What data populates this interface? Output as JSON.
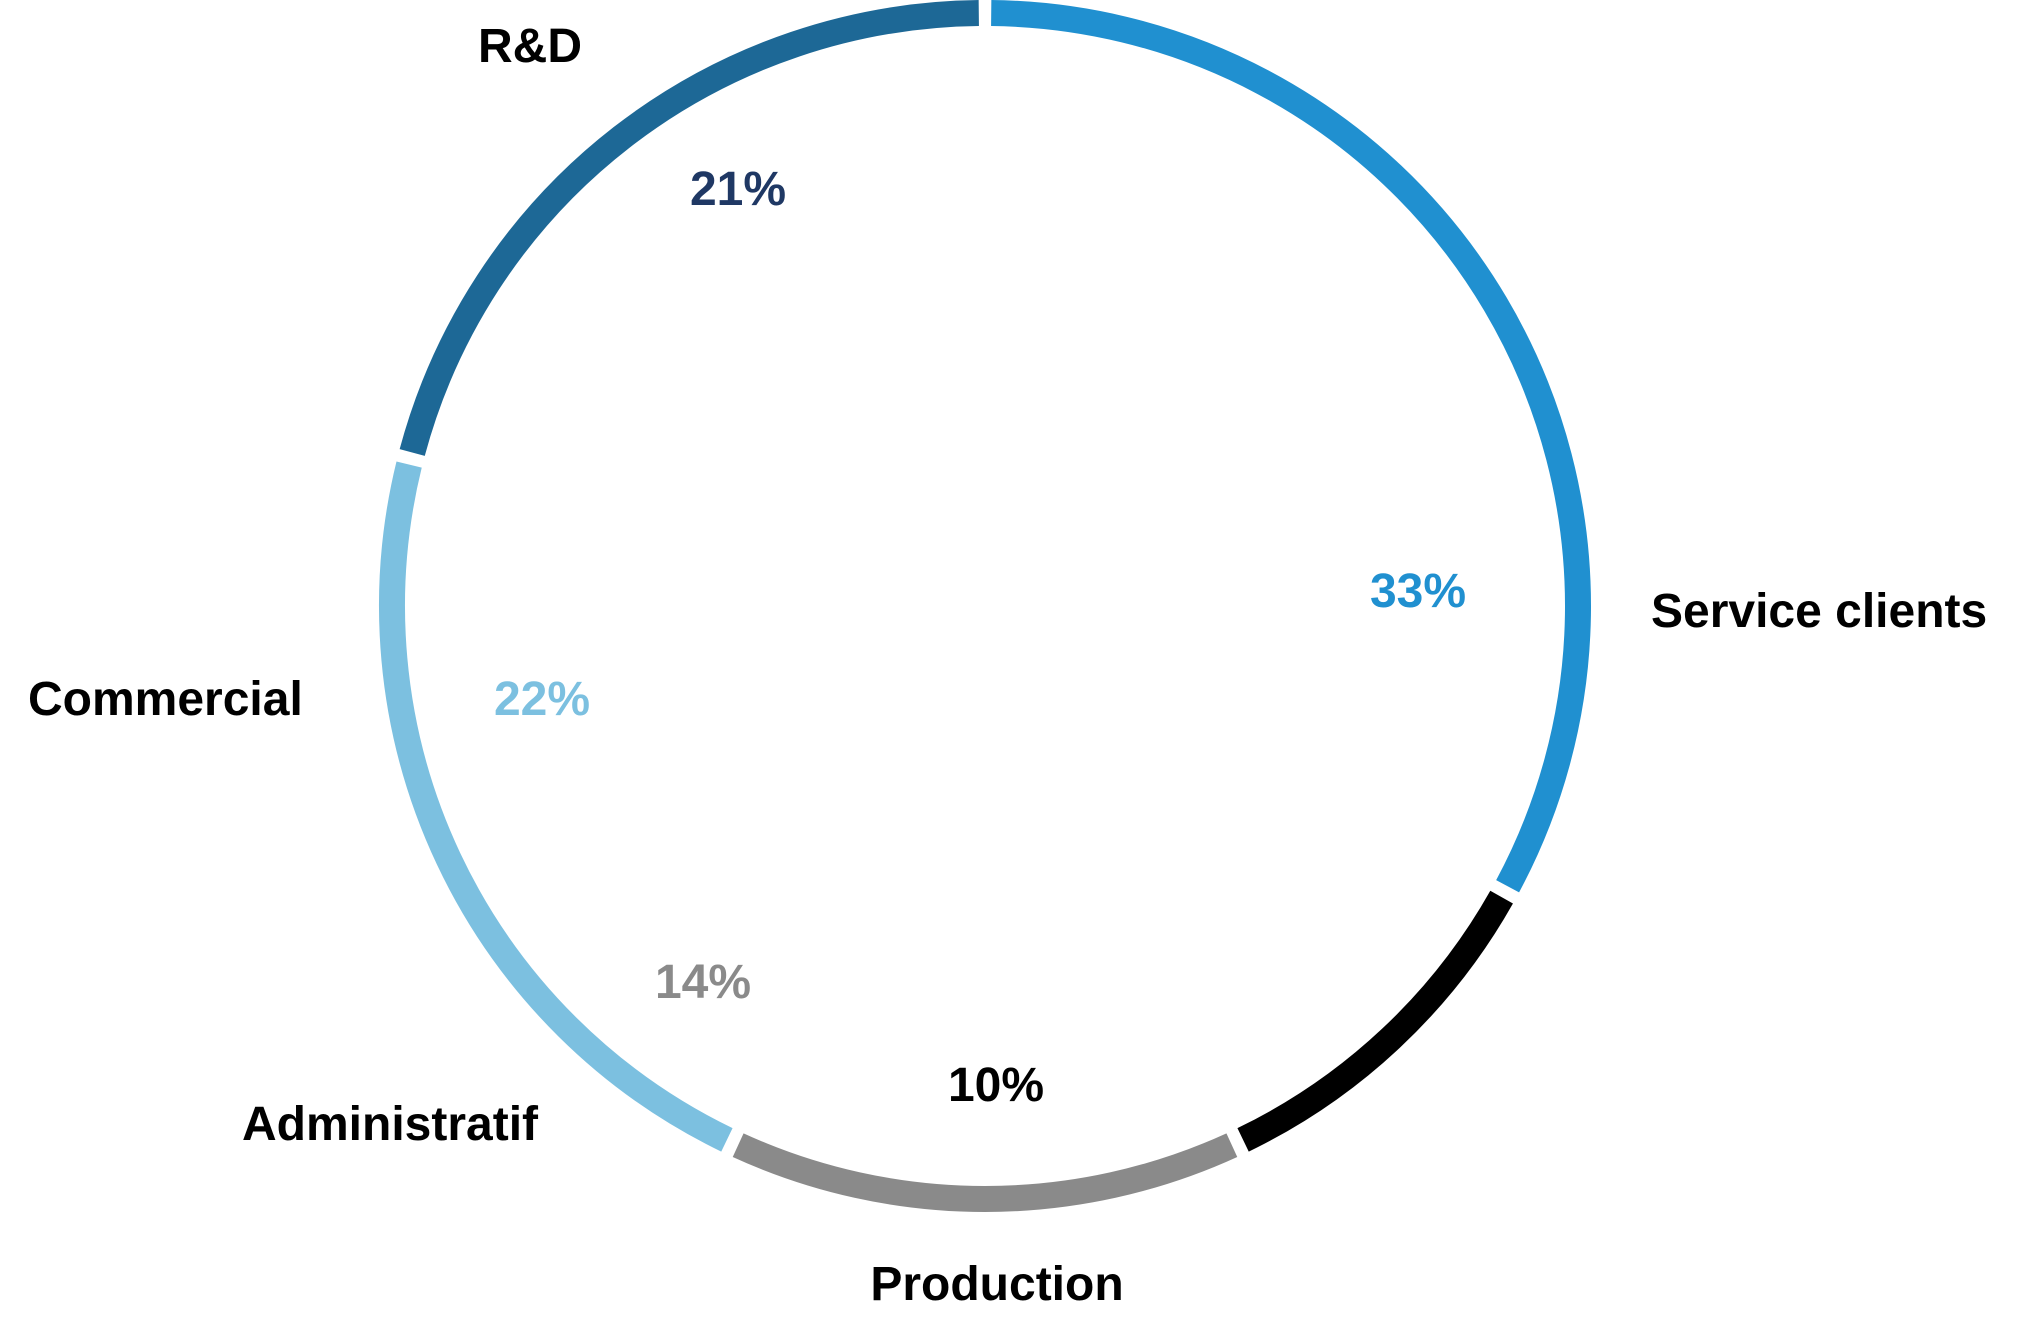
{
  "chart_data": {
    "type": "pie",
    "style": "ring",
    "categories": [
      "Service clients",
      "Production",
      "Administratif",
      "Commercial",
      "R&D"
    ],
    "values": [
      33,
      10,
      14,
      22,
      21
    ],
    "value_labels": [
      "33%",
      "10%",
      "14%",
      "22%",
      "21%"
    ],
    "colors": [
      "#2090d0",
      "#000000",
      "#8a8a8a",
      "#7cc0e0",
      "#1d6896"
    ],
    "value_label_colors": [
      "#2090d0",
      "#000000",
      "#8a8a8a",
      "#7cc0e0",
      "#1f3864"
    ],
    "start": "top",
    "direction": "clockwise",
    "legend": "none"
  }
}
